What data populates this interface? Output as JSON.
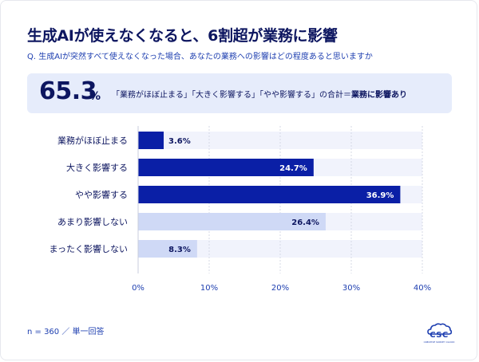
{
  "header": {
    "title": "生成AIが使えなくなると、6割超が業務に影響",
    "question": "Q. 生成AIが突然すべて使えなくなった場合、あなたの業務への影響はどの程度あると思いますか"
  },
  "summary": {
    "value": "65.3",
    "unit": "%",
    "text_plain": "「業務がほぼ止まる」「大きく影響する」「やや影響する」の合計＝",
    "text_bold": "業務に影響あり"
  },
  "footnote": "n = 360 ／ 単一回答",
  "logo": {
    "text": "CSC",
    "sub": "CREATIVE SURVEY CLOUD"
  },
  "colors": {
    "dark_bar": "#0a1fa6",
    "light_bar": "#cfd9f6",
    "track": "#f1f3fc",
    "title": "#0d1660",
    "accent": "#1e3fb0"
  },
  "chart_data": {
    "type": "bar",
    "orientation": "horizontal",
    "categories": [
      "業務がほぼ止まる",
      "大きく影響する",
      "やや影響する",
      "あまり影響しない",
      "まったく影響しない"
    ],
    "values": [
      3.6,
      24.7,
      36.9,
      26.4,
      8.3
    ],
    "value_labels": [
      "3.6%",
      "24.7%",
      "36.9%",
      "26.4%",
      "8.3%"
    ],
    "highlight": [
      true,
      true,
      true,
      false,
      false
    ],
    "xlim": [
      0,
      40
    ],
    "x_ticks": [
      0,
      10,
      20,
      30,
      40
    ],
    "x_tick_labels": [
      "0%",
      "10%",
      "20%",
      "30%",
      "40%"
    ],
    "grid": true
  }
}
